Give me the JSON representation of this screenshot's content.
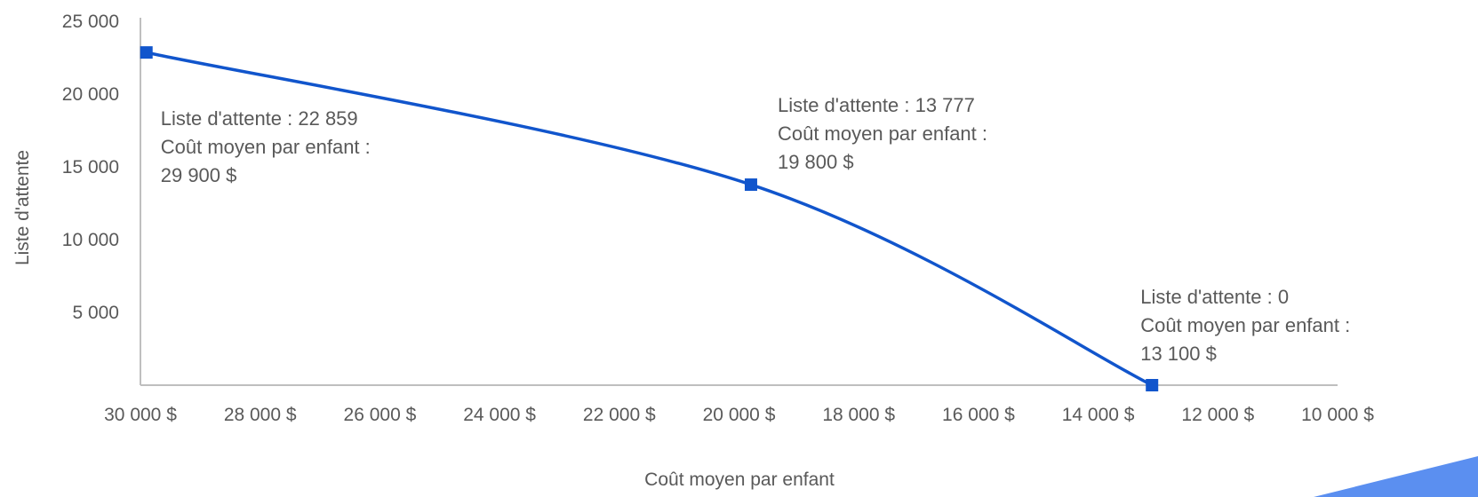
{
  "chart_data": {
    "type": "line",
    "title": "",
    "xlabel": "Coût moyen par enfant",
    "ylabel": "Liste d'attente",
    "x_reversed": true,
    "xlim": [
      10000,
      30000
    ],
    "ylim": [
      0,
      25000
    ],
    "x_ticks": [
      30000,
      28000,
      26000,
      24000,
      22000,
      20000,
      18000,
      16000,
      14000,
      12000,
      10000
    ],
    "x_tick_labels": [
      "30 000 $",
      "28 000 $",
      "26 000 $",
      "24 000 $",
      "22 000 $",
      "20 000 $",
      "18 000 $",
      "16 000 $",
      "14 000 $",
      "12 000 $",
      "10 000 $"
    ],
    "y_ticks": [
      5000,
      10000,
      15000,
      20000,
      25000
    ],
    "y_tick_labels": [
      "5 000",
      "10 000",
      "15 000",
      "20 000",
      "25 000"
    ],
    "grid": false,
    "series": [
      {
        "color": "#1155cc",
        "points": [
          {
            "x": 29900,
            "y": 22859
          },
          {
            "x": 19800,
            "y": 13777
          },
          {
            "x": 13100,
            "y": 0
          }
        ]
      }
    ],
    "annotations": [
      {
        "lines": [
          "Liste d'attente : 22 859",
          "Coût moyen par enfant :",
          "29 900 $"
        ]
      },
      {
        "lines": [
          "Liste d'attente : 13 777",
          "Coût moyen par enfant :",
          "19 800 $"
        ]
      },
      {
        "lines": [
          "Liste d'attente : 0",
          "Coût moyen par enfant :",
          "13 100 $"
        ]
      }
    ]
  },
  "colors": {
    "line": "#1155cc",
    "marker": "#1155cc",
    "axis": "#bfbfbf",
    "text": "#595959",
    "corner_accent": "#5b8ff0"
  }
}
